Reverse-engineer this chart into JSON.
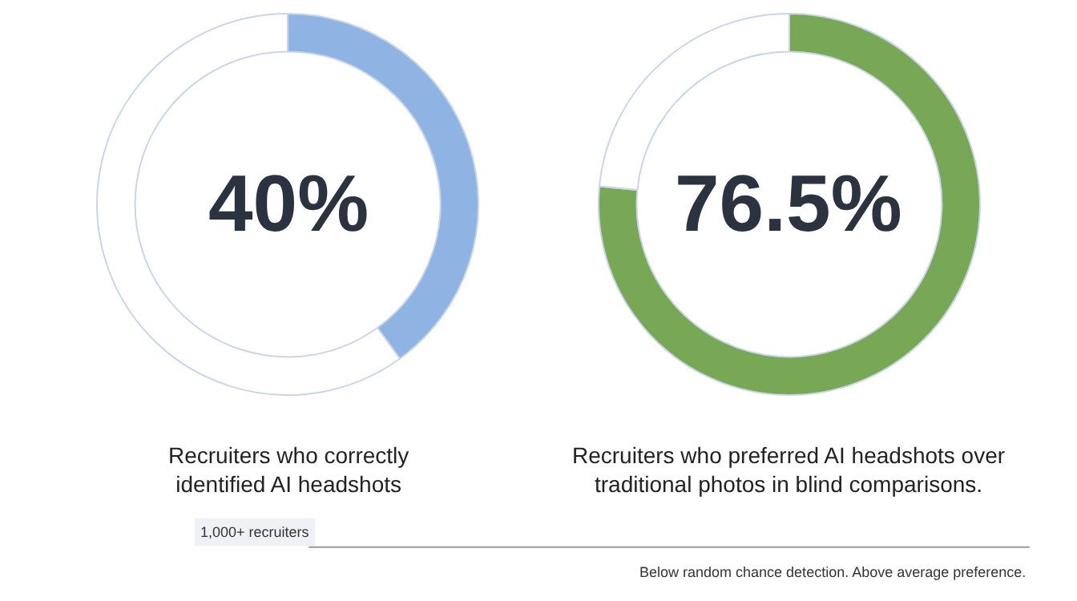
{
  "chart_data": [
    {
      "type": "donut",
      "title": "Recruiters who correctly identified AI headshots",
      "categories": [
        null,
        null
      ],
      "values": [
        40,
        60
      ],
      "colors": [
        "#8fb4e3",
        "#ffffff"
      ],
      "annotations": [
        "40%",
        "1,000+ recruiters"
      ]
    },
    {
      "type": "donut",
      "title": "Recruiters who preferred AI headshots over traditional photos in blind comparisons.",
      "categories": [
        null,
        null
      ],
      "values": [
        76.5,
        23.5
      ],
      "colors": [
        "#78a856",
        "#ffffff"
      ],
      "annotations": [
        "76.5%",
        "Below random chance detection. Above average preference."
      ]
    }
  ]
}
